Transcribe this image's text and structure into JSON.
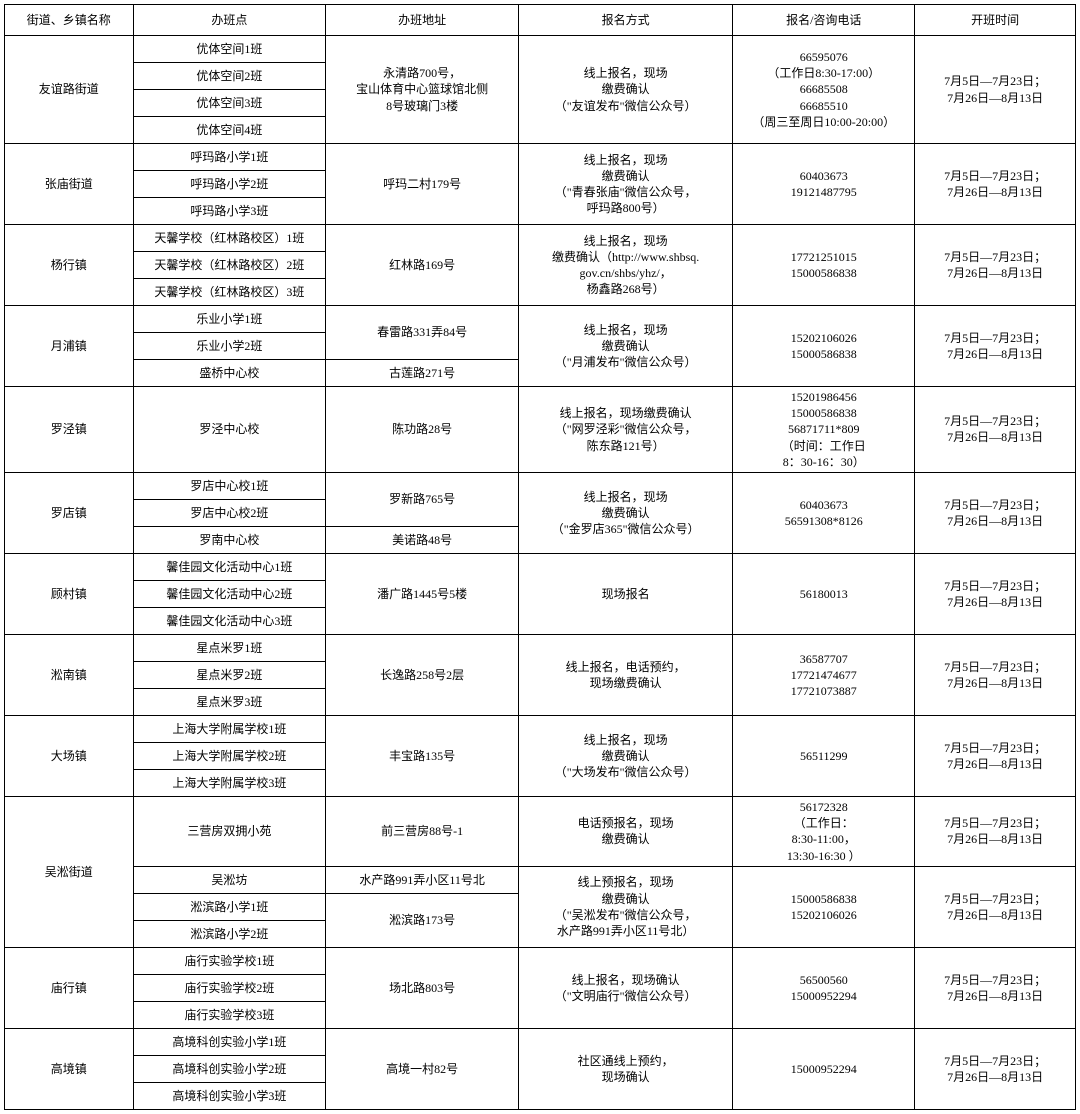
{
  "headers": [
    "街道、乡镇名称",
    "办班点",
    "办班地址",
    "报名方式",
    "报名/咨询电话",
    "开班时间"
  ],
  "time_default": "7月5日—7月23日；\n7月26日—8月13日",
  "groups": [
    {
      "district": "友谊路街道",
      "rows": [
        {
          "class": "优体空间1班",
          "addr": "永清路700号，\n宝山体育中心篮球馆北侧\n8号玻璃门3楼",
          "addr_span": 4,
          "reg": "线上报名，现场\n缴费确认\n（\"友谊发布\"微信公众号）",
          "reg_span": 4,
          "phone": "66595076\n（工作日8:30-17:00）\n66685508\n66685510\n（周三至周日10:00-20:00）",
          "phone_span": 4,
          "time_span": 4
        },
        {
          "class": "优体空间2班"
        },
        {
          "class": "优体空间3班"
        },
        {
          "class": "优体空间4班"
        }
      ]
    },
    {
      "district": "张庙街道",
      "rows": [
        {
          "class": "呼玛路小学1班",
          "addr": "呼玛二村179号",
          "addr_span": 3,
          "reg": "线上报名，现场\n缴费确认\n（\"青春张庙\"微信公众号，\n呼玛路800号）",
          "reg_span": 3,
          "phone": "60403673\n19121487795",
          "phone_span": 3,
          "time_span": 3
        },
        {
          "class": "呼玛路小学2班"
        },
        {
          "class": "呼玛路小学3班"
        }
      ]
    },
    {
      "district": "杨行镇",
      "rows": [
        {
          "class": "天馨学校（红林路校区）1班",
          "addr": "红林路169号",
          "addr_span": 3,
          "reg": "线上报名，现场\n缴费确认（http://www.shbsq.\ngov.cn/shbs/yhz/，\n杨鑫路268号）",
          "reg_span": 3,
          "phone": "17721251015\n15000586838",
          "phone_span": 3,
          "time_span": 3
        },
        {
          "class": "天馨学校（红林路校区）2班"
        },
        {
          "class": "天馨学校（红林路校区）3班"
        }
      ]
    },
    {
      "district": "月浦镇",
      "rows": [
        {
          "class": "乐业小学1班",
          "addr": "春雷路331弄84号",
          "addr_span": 2,
          "reg": "线上报名，现场\n缴费确认\n（\"月浦发布\"微信公众号）",
          "reg_span": 3,
          "phone": "15202106026\n15000586838",
          "phone_span": 3,
          "time_span": 3
        },
        {
          "class": "乐业小学2班"
        },
        {
          "class": "盛桥中心校",
          "addr": "古莲路271号",
          "addr_span": 1
        }
      ]
    },
    {
      "district": "罗泾镇",
      "rows": [
        {
          "class": "罗泾中心校",
          "addr": "陈功路28号",
          "addr_span": 1,
          "reg": "线上报名，现场缴费确认\n（\"网罗泾彩\"微信公众号，\n陈东路121号）",
          "reg_span": 1,
          "phone": "15201986456\n15000586838\n56871711*809\n（时间：工作日\n8：30-16：30）",
          "phone_span": 1,
          "time_span": 1
        }
      ]
    },
    {
      "district": "罗店镇",
      "rows": [
        {
          "class": "罗店中心校1班",
          "addr": "罗新路765号",
          "addr_span": 2,
          "reg": "线上报名，现场\n缴费确认\n（\"金罗店365\"微信公众号）",
          "reg_span": 3,
          "phone": "60403673\n56591308*8126",
          "phone_span": 3,
          "time_span": 3
        },
        {
          "class": "罗店中心校2班"
        },
        {
          "class": "罗南中心校",
          "addr": "美诺路48号",
          "addr_span": 1
        }
      ]
    },
    {
      "district": "顾村镇",
      "rows": [
        {
          "class": "馨佳园文化活动中心1班",
          "addr": "潘广路1445号5楼",
          "addr_span": 3,
          "reg": "现场报名",
          "reg_span": 3,
          "phone": "56180013",
          "phone_span": 3,
          "time_span": 3
        },
        {
          "class": "馨佳园文化活动中心2班"
        },
        {
          "class": "馨佳园文化活动中心3班"
        }
      ]
    },
    {
      "district": "淞南镇",
      "rows": [
        {
          "class": "星点米罗1班",
          "addr": "长逸路258号2层",
          "addr_span": 3,
          "reg": "线上报名，电话预约，\n现场缴费确认",
          "reg_span": 3,
          "phone": "36587707\n17721474677\n17721073887",
          "phone_span": 3,
          "time_span": 3
        },
        {
          "class": "星点米罗2班"
        },
        {
          "class": "星点米罗3班"
        }
      ]
    },
    {
      "district": "大场镇",
      "rows": [
        {
          "class": "上海大学附属学校1班",
          "addr": "丰宝路135号",
          "addr_span": 3,
          "reg": "线上报名，现场\n缴费确认\n（\"大场发布\"微信公众号）",
          "reg_span": 3,
          "phone": "56511299",
          "phone_span": 3,
          "time_span": 3
        },
        {
          "class": "上海大学附属学校2班"
        },
        {
          "class": "上海大学附属学校3班"
        }
      ]
    },
    {
      "district": "吴淞街道",
      "rows": [
        {
          "class": "三营房双拥小苑",
          "addr": "前三营房88号-1",
          "addr_span": 1,
          "reg": "电话预报名，现场\n缴费确认",
          "reg_span": 1,
          "phone": "56172328\n（工作日：\n8:30-11:00，\n13:30-16:30 ）",
          "phone_span": 1,
          "time_span": 1
        },
        {
          "class": "吴淞坊",
          "addr": "水产路991弄小区11号北",
          "addr_span": 1,
          "reg": "线上预报名，现场\n缴费确认\n（\"吴淞发布\"微信公众号，\n水产路991弄小区11号北）",
          "reg_span": 3,
          "phone": "15000586838\n15202106026",
          "phone_span": 3,
          "time_span": 3
        },
        {
          "class": "淞滨路小学1班",
          "addr": "淞滨路173号",
          "addr_span": 2
        },
        {
          "class": "淞滨路小学2班"
        }
      ]
    },
    {
      "district": "庙行镇",
      "rows": [
        {
          "class": "庙行实验学校1班",
          "addr": "场北路803号",
          "addr_span": 3,
          "reg": "线上报名，现场确认\n（\"文明庙行\"微信公众号）",
          "reg_span": 3,
          "phone": "56500560\n15000952294",
          "phone_span": 3,
          "time_span": 3
        },
        {
          "class": "庙行实验学校2班"
        },
        {
          "class": "庙行实验学校3班"
        }
      ]
    },
    {
      "district": "高境镇",
      "rows": [
        {
          "class": "高境科创实验小学1班",
          "addr": "高境一村82号",
          "addr_span": 3,
          "reg": "社区通线上预约，\n现场确认",
          "reg_span": 3,
          "phone": "15000952294",
          "phone_span": 3,
          "time_span": 3
        },
        {
          "class": "高境科创实验小学2班"
        },
        {
          "class": "高境科创实验小学3班"
        }
      ]
    }
  ]
}
